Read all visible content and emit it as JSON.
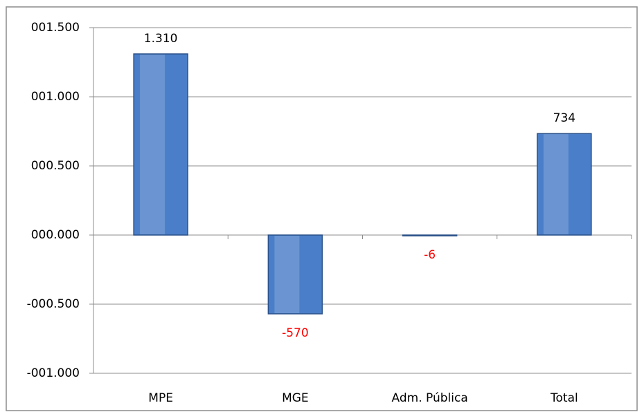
{
  "chart_data": {
    "type": "bar",
    "categories": [
      "MPE",
      "MGE",
      "Adm. Pública",
      "Total"
    ],
    "values": [
      1310,
      -570,
      -6,
      734
    ],
    "value_labels": [
      "1.310",
      "-570",
      "-6",
      "734"
    ],
    "color": "#4a7ec8",
    "label_color": "#000000",
    "negative_label_color": "#ff0000",
    "ylim": [
      -1000,
      1500
    ],
    "yticks": [
      {
        "value": -1000,
        "label": "-001.000"
      },
      {
        "value": -500,
        "label": "-000.500"
      },
      {
        "value": 0,
        "label": "000.000"
      },
      {
        "value": 500,
        "label": "000.500"
      },
      {
        "value": 1000,
        "label": "001.000"
      },
      {
        "value": 1500,
        "label": "001.500"
      }
    ],
    "grid": true
  }
}
